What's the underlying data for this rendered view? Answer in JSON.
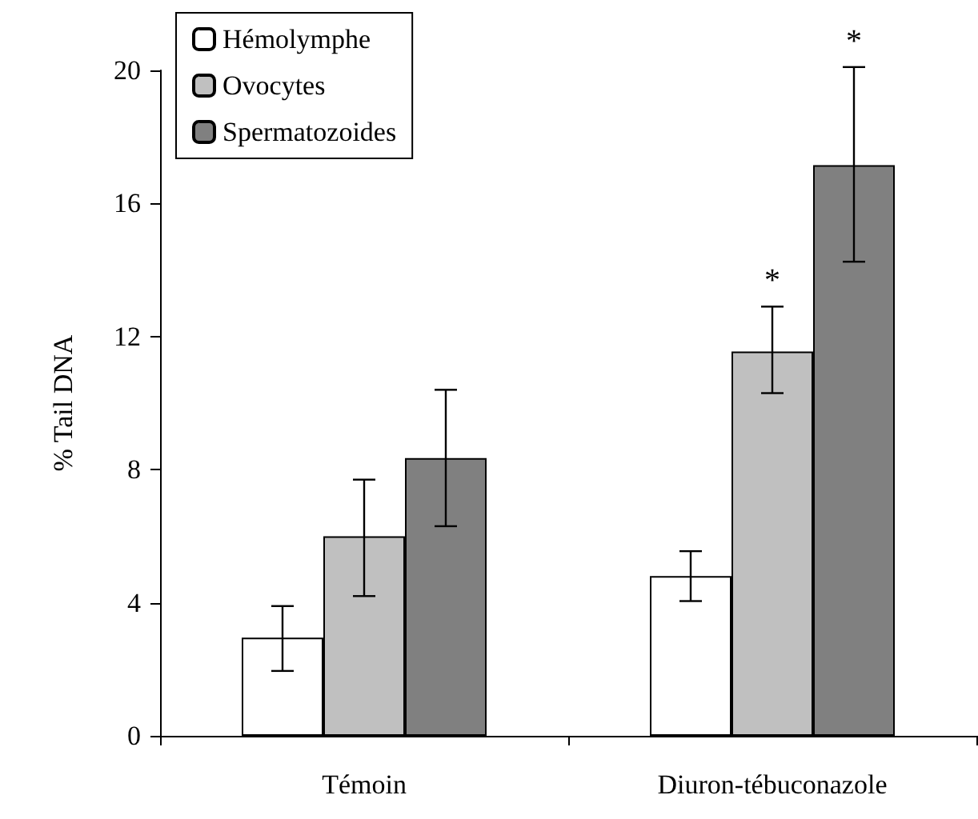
{
  "chart_data": {
    "type": "bar",
    "ylabel": "% Tail DNA",
    "categories": [
      "Témoin",
      "Diuron-tébuconazole"
    ],
    "series": [
      {
        "name": "Hémolymphe",
        "color": "#ffffff",
        "values": [
          2.95,
          4.8
        ],
        "errors": [
          [
            1.95,
            3.9
          ],
          [
            4.05,
            5.55
          ]
        ]
      },
      {
        "name": "Ovocytes",
        "color": "#c0c0c0",
        "values": [
          6.0,
          11.55
        ],
        "errors": [
          [
            4.2,
            7.7
          ],
          [
            10.3,
            12.9
          ]
        ]
      },
      {
        "name": "Spermatozoides",
        "color": "#808080",
        "values": [
          8.35,
          17.15
        ],
        "errors": [
          [
            6.3,
            10.4
          ],
          [
            14.25,
            20.1
          ]
        ]
      }
    ],
    "ylim": [
      0,
      20
    ],
    "yticks": [
      0,
      4,
      8,
      12,
      16,
      20
    ],
    "grid": false,
    "legend": "top left",
    "annotations": [
      "*",
      "*"
    ]
  }
}
